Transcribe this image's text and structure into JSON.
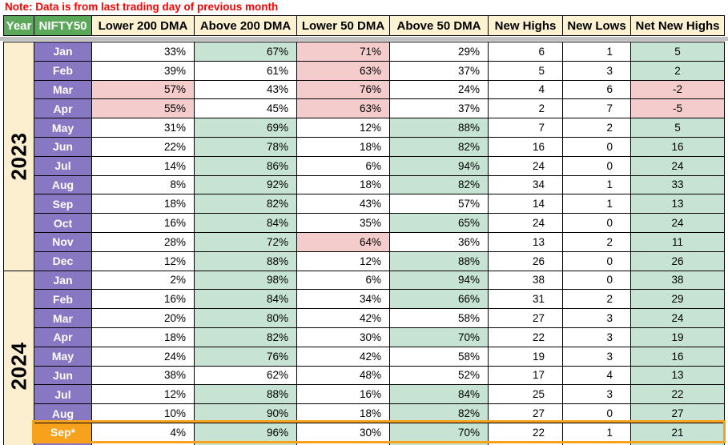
{
  "note": "Note: Data is from last trading day of previous month",
  "columns": [
    "Year",
    "NIFTY50",
    "Lower 200 DMA",
    "Above 200 DMA",
    "Lower 50 DMA",
    "Above 50 DMA",
    "New Highs",
    "New Lows",
    "Net New Highs"
  ],
  "colors": {
    "note_red": "#FF0000",
    "header_green": "#5BA85B",
    "header_cream": "#FCF2D2",
    "month_purple": "#8878C3",
    "year_cream": "#FCEFD0",
    "cell_white": "#FFFFFF",
    "cell_green": "#C6E3D3",
    "cell_pink": "#F4CCCC",
    "highlight_orange": "#F7A11C",
    "divider_grey": "#C0C0C0",
    "grid_black": "#000000"
  },
  "fill_legend": {
    "w": "cell_white",
    "g": "cell_green",
    "p": "cell_pink"
  },
  "years": [
    {
      "year": "2023",
      "rows": [
        {
          "month": "Jan",
          "values": [
            "33%",
            "67%",
            "71%",
            "29%",
            "6",
            "1",
            "5"
          ],
          "fills": [
            "w",
            "g",
            "p",
            "w",
            "w",
            "w",
            "g"
          ]
        },
        {
          "month": "Feb",
          "values": [
            "39%",
            "61%",
            "63%",
            "37%",
            "5",
            "3",
            "2"
          ],
          "fills": [
            "w",
            "w",
            "p",
            "w",
            "w",
            "w",
            "g"
          ]
        },
        {
          "month": "Mar",
          "values": [
            "57%",
            "43%",
            "76%",
            "24%",
            "4",
            "6",
            "-2"
          ],
          "fills": [
            "p",
            "w",
            "p",
            "w",
            "w",
            "w",
            "p"
          ]
        },
        {
          "month": "Apr",
          "values": [
            "55%",
            "45%",
            "63%",
            "37%",
            "2",
            "7",
            "-5"
          ],
          "fills": [
            "p",
            "w",
            "p",
            "w",
            "w",
            "w",
            "p"
          ]
        },
        {
          "month": "May",
          "values": [
            "31%",
            "69%",
            "12%",
            "88%",
            "7",
            "2",
            "5"
          ],
          "fills": [
            "w",
            "g",
            "w",
            "g",
            "w",
            "w",
            "g"
          ]
        },
        {
          "month": "Jun",
          "values": [
            "22%",
            "78%",
            "18%",
            "82%",
            "16",
            "0",
            "16"
          ],
          "fills": [
            "w",
            "g",
            "w",
            "g",
            "w",
            "w",
            "g"
          ]
        },
        {
          "month": "Jul",
          "values": [
            "14%",
            "86%",
            "6%",
            "94%",
            "24",
            "0",
            "24"
          ],
          "fills": [
            "w",
            "g",
            "w",
            "g",
            "w",
            "w",
            "g"
          ]
        },
        {
          "month": "Aug",
          "values": [
            "8%",
            "92%",
            "18%",
            "82%",
            "34",
            "1",
            "33"
          ],
          "fills": [
            "w",
            "g",
            "w",
            "g",
            "w",
            "w",
            "g"
          ]
        },
        {
          "month": "Sep",
          "values": [
            "18%",
            "82%",
            "43%",
            "57%",
            "14",
            "1",
            "13"
          ],
          "fills": [
            "w",
            "g",
            "w",
            "w",
            "w",
            "w",
            "g"
          ]
        },
        {
          "month": "Oct",
          "values": [
            "16%",
            "84%",
            "35%",
            "65%",
            "24",
            "0",
            "24"
          ],
          "fills": [
            "w",
            "g",
            "w",
            "g",
            "w",
            "w",
            "g"
          ]
        },
        {
          "month": "Nov",
          "values": [
            "28%",
            "72%",
            "64%",
            "36%",
            "13",
            "2",
            "11"
          ],
          "fills": [
            "w",
            "g",
            "p",
            "w",
            "w",
            "w",
            "g"
          ]
        },
        {
          "month": "Dec",
          "values": [
            "12%",
            "88%",
            "12%",
            "88%",
            "26",
            "0",
            "26"
          ],
          "fills": [
            "w",
            "g",
            "w",
            "g",
            "w",
            "w",
            "g"
          ]
        }
      ]
    },
    {
      "year": "2024",
      "rows": [
        {
          "month": "Jan",
          "values": [
            "2%",
            "98%",
            "6%",
            "94%",
            "38",
            "0",
            "38"
          ],
          "fills": [
            "w",
            "g",
            "w",
            "g",
            "w",
            "w",
            "g"
          ]
        },
        {
          "month": "Feb",
          "values": [
            "16%",
            "84%",
            "34%",
            "66%",
            "31",
            "2",
            "29"
          ],
          "fills": [
            "w",
            "g",
            "w",
            "g",
            "w",
            "w",
            "g"
          ]
        },
        {
          "month": "Mar",
          "values": [
            "20%",
            "80%",
            "42%",
            "58%",
            "27",
            "3",
            "24"
          ],
          "fills": [
            "w",
            "g",
            "w",
            "w",
            "w",
            "w",
            "g"
          ]
        },
        {
          "month": "Apr",
          "values": [
            "18%",
            "82%",
            "30%",
            "70%",
            "22",
            "3",
            "19"
          ],
          "fills": [
            "w",
            "g",
            "w",
            "g",
            "w",
            "w",
            "g"
          ]
        },
        {
          "month": "May",
          "values": [
            "24%",
            "76%",
            "42%",
            "58%",
            "19",
            "3",
            "16"
          ],
          "fills": [
            "w",
            "g",
            "w",
            "w",
            "w",
            "w",
            "g"
          ]
        },
        {
          "month": "Jun",
          "values": [
            "38%",
            "62%",
            "48%",
            "52%",
            "17",
            "4",
            "13"
          ],
          "fills": [
            "w",
            "w",
            "w",
            "w",
            "w",
            "w",
            "g"
          ]
        },
        {
          "month": "Jul",
          "values": [
            "12%",
            "88%",
            "16%",
            "84%",
            "25",
            "3",
            "22"
          ],
          "fills": [
            "w",
            "g",
            "w",
            "g",
            "w",
            "w",
            "g"
          ]
        },
        {
          "month": "Aug",
          "values": [
            "10%",
            "90%",
            "18%",
            "82%",
            "27",
            "0",
            "27"
          ],
          "fills": [
            "w",
            "g",
            "w",
            "g",
            "w",
            "w",
            "g"
          ]
        },
        {
          "month": "Sep*",
          "values": [
            "4%",
            "96%",
            "30%",
            "70%",
            "22",
            "1",
            "21"
          ],
          "fills": [
            "w",
            "g",
            "w",
            "g",
            "w",
            "w",
            "g"
          ],
          "highlight": true
        }
      ],
      "partial_row": {
        "fills": [
          "w",
          "g",
          "w",
          "g",
          "w",
          "w",
          "g"
        ]
      }
    }
  ]
}
